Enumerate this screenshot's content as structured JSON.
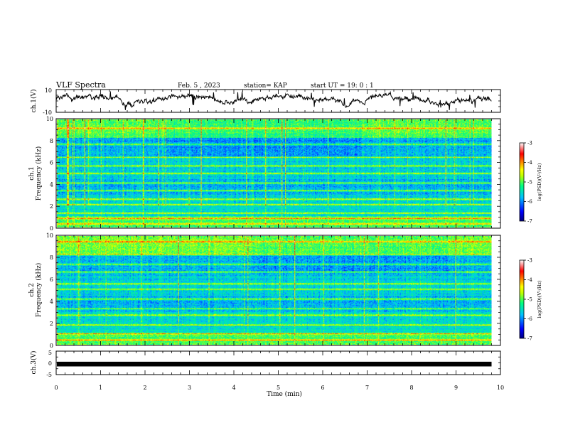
{
  "header": {
    "title": "VLF Spectra",
    "date": "Feb. 5 , 2023",
    "station": "station= KAP",
    "start_ut": "start  UT =   19: 0  : 1"
  },
  "chart_data": [
    {
      "type": "line",
      "panel": "ch1-waveform",
      "ylabel": "ch.1(V)",
      "ylim": [
        -10,
        10
      ],
      "yticks": [
        "10",
        "-10"
      ],
      "xlim": [
        0,
        10
      ],
      "note": "noisy broadband waveform trace, amplitude roughly -6 to 8 V",
      "color": "#000000"
    },
    {
      "type": "heatmap",
      "panel": "ch1-spectrogram",
      "ylabel_line1": "ch.1",
      "ylabel_line2": "Frequency (kHz)",
      "ylim": [
        0,
        10
      ],
      "yticks": [
        "0",
        "2",
        "4",
        "6",
        "8",
        "10"
      ],
      "xlim": [
        0,
        9.8
      ],
      "colorbar": {
        "label": "log(PSD)(V²/Hz)",
        "range": [
          -7,
          -3
        ],
        "ticks": [
          "-3",
          "-4",
          "-5",
          "-6",
          "-7"
        ]
      },
      "bands_khz": [
        0.3,
        0.8,
        1.3,
        2.1,
        2.6,
        3.4,
        4.1,
        5.0,
        5.7,
        6.5,
        7.7,
        9.2
      ],
      "colors": [
        "#000080",
        "#0000ff",
        "#00c0ff",
        "#00ff80",
        "#c0ff00",
        "#ffff00",
        "#ff8000",
        "#ff0000",
        "#ffffff"
      ]
    },
    {
      "type": "heatmap",
      "panel": "ch2-spectrogram",
      "ylabel_line1": "ch.2",
      "ylabel_line2": "Frequency (kHz)",
      "ylim": [
        0,
        10
      ],
      "yticks": [
        "0",
        "2",
        "4",
        "6",
        "8",
        "10"
      ],
      "xlim": [
        0,
        9.8
      ],
      "colorbar": {
        "label": "log(PSD)(V²/Hz)",
        "range": [
          -7,
          -3
        ],
        "ticks": [
          "-3",
          "-4",
          "-5",
          "-6",
          "-7"
        ]
      },
      "bands_khz": [
        0.4,
        1.0,
        1.8,
        2.7,
        3.3,
        4.2,
        5.1,
        5.6,
        6.7,
        7.4,
        8.3,
        9.5
      ],
      "colors": [
        "#000080",
        "#0000ff",
        "#00c0ff",
        "#00ff80",
        "#c0ff00",
        "#ffff00",
        "#ff8000",
        "#ff0000",
        "#ffffff"
      ]
    },
    {
      "type": "line",
      "panel": "ch3-waveform",
      "ylabel": "ch.3(V)",
      "ylim": [
        -5,
        5
      ],
      "yticks": [
        "5",
        "0",
        "-5"
      ],
      "xlim": [
        0,
        9.8
      ],
      "note": "thick flat band centred near -0.5 V",
      "color": "#000000"
    }
  ],
  "xaxis": {
    "label": "Time (min)",
    "range": [
      0,
      10
    ],
    "ticks": [
      "0",
      "1",
      "2",
      "3",
      "4",
      "5",
      "6",
      "7",
      "8",
      "9",
      "10"
    ]
  }
}
